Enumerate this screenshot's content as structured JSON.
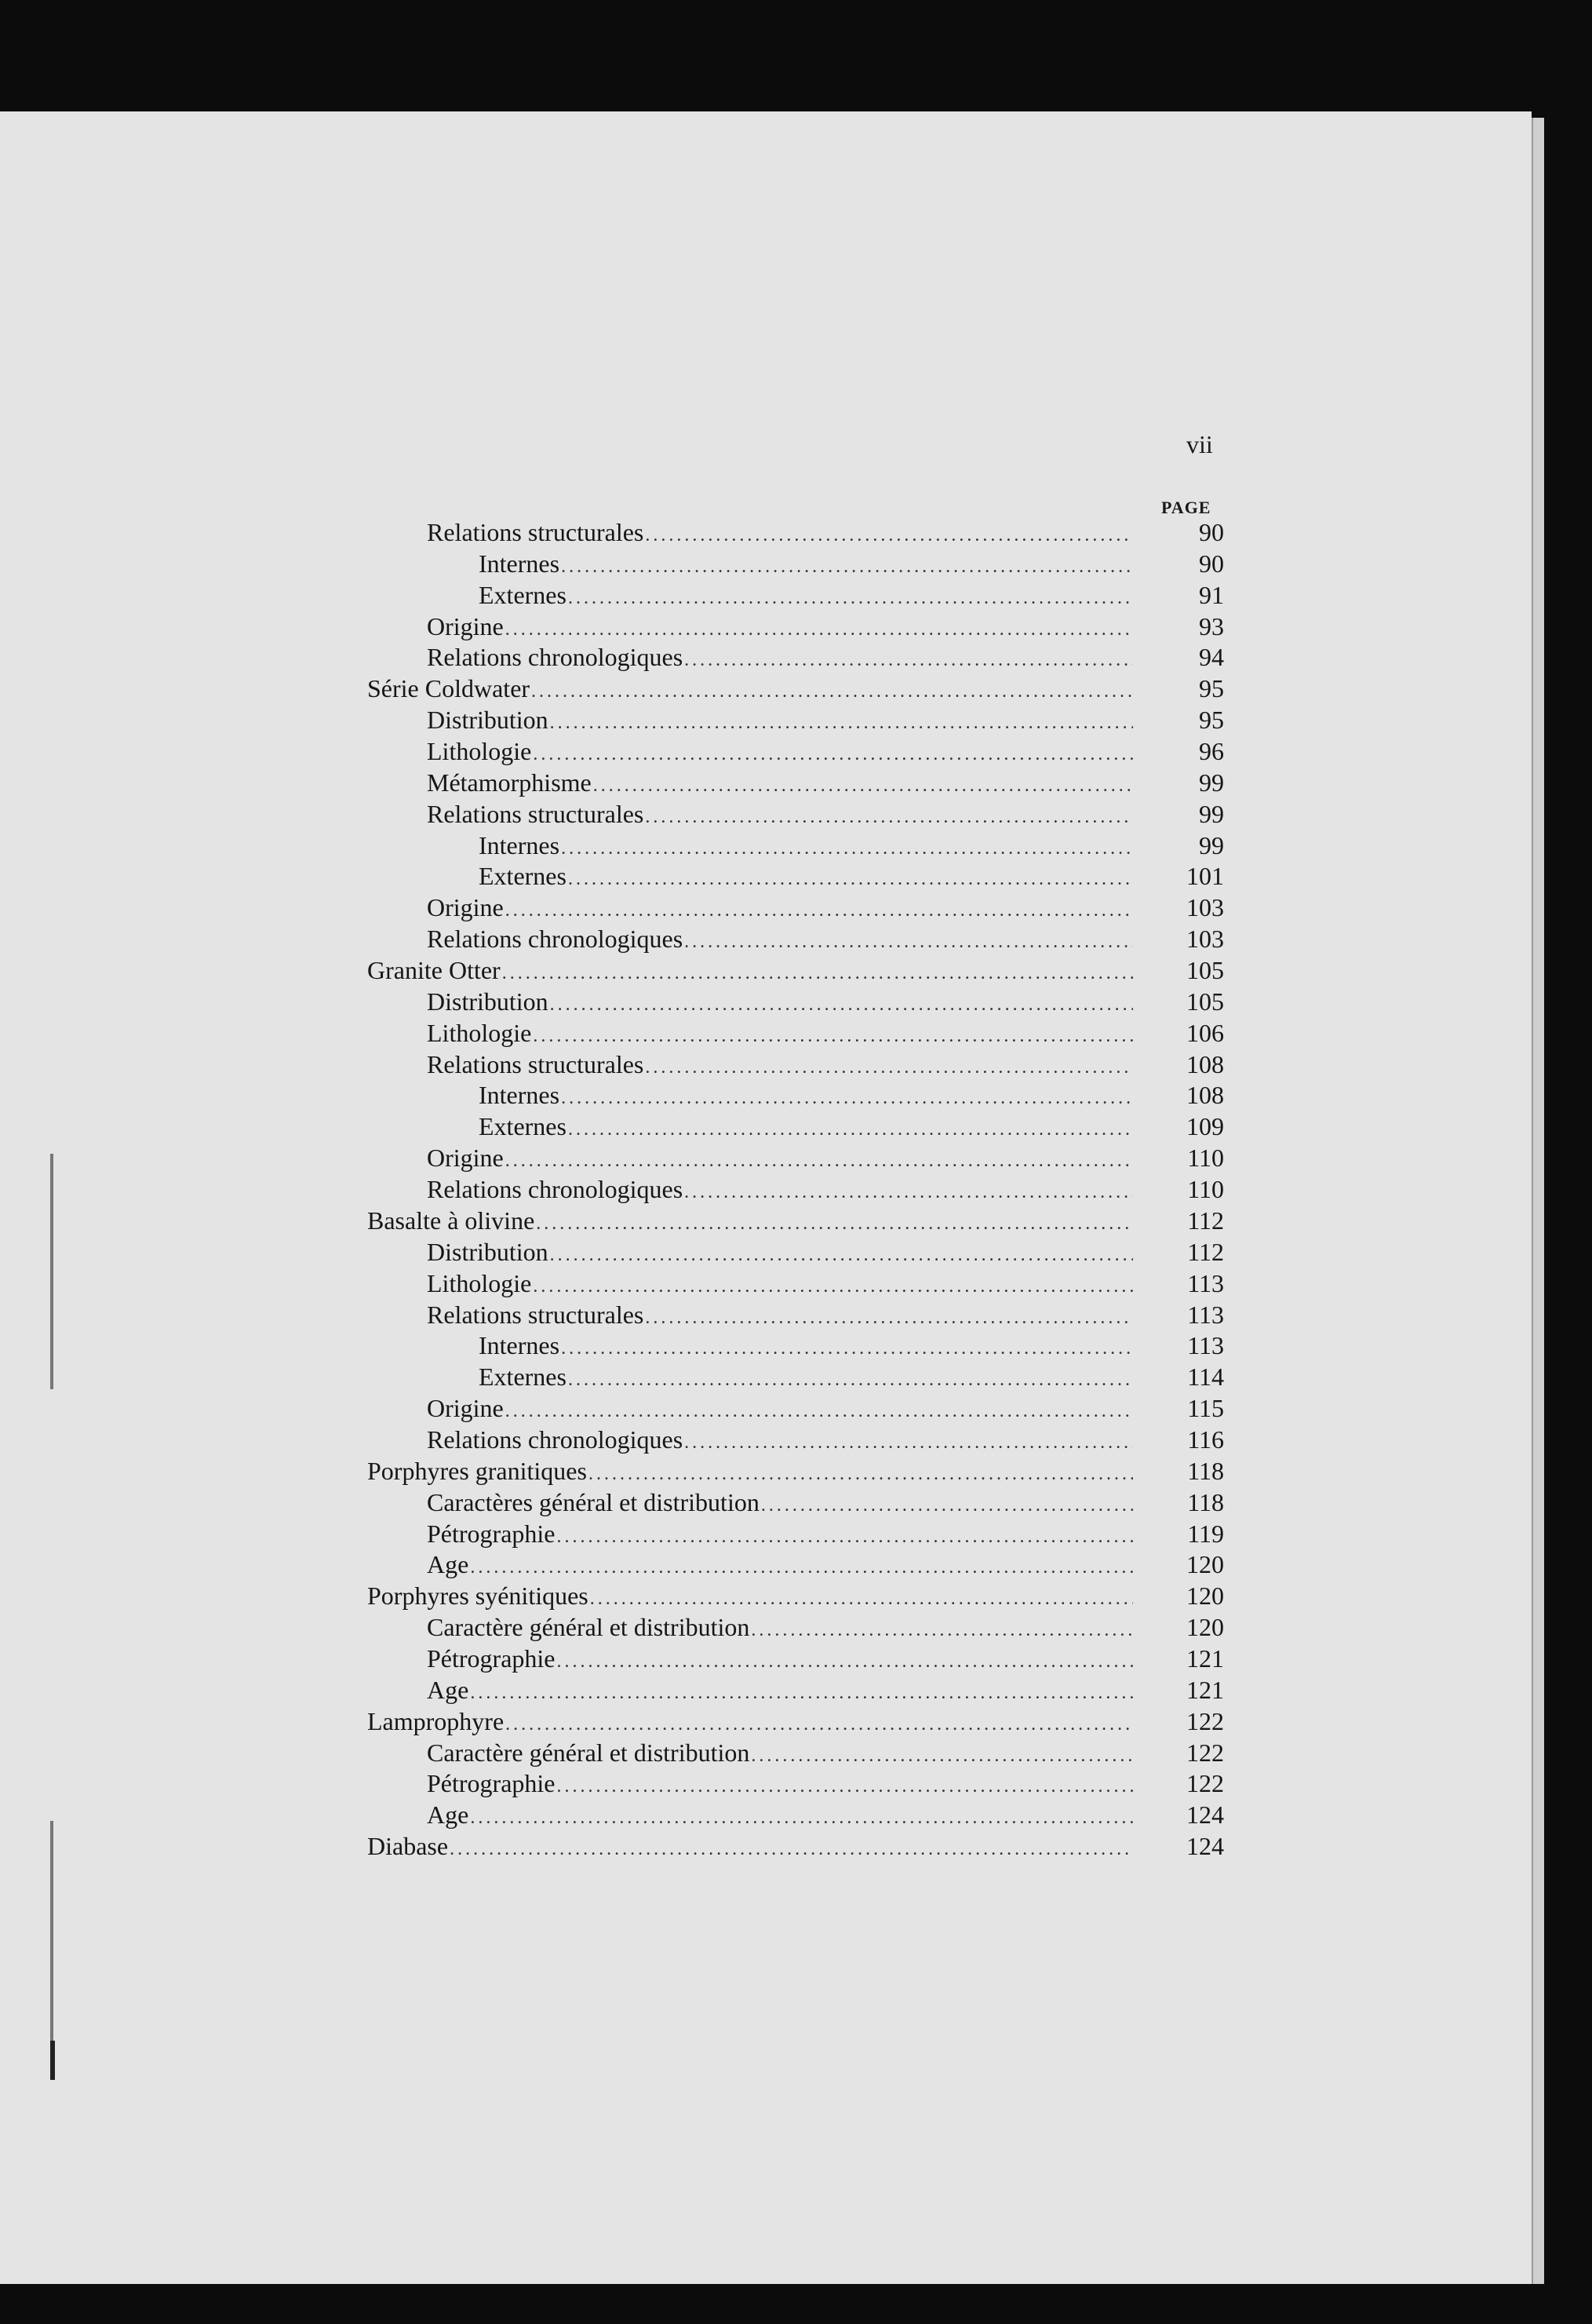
{
  "folio": "vii",
  "column_header": "PAGE",
  "entries": [
    {
      "label": "Relations structurales",
      "page": "90",
      "level": 1
    },
    {
      "label": "Internes",
      "page": "90",
      "level": 2
    },
    {
      "label": "Externes",
      "page": "91",
      "level": 2
    },
    {
      "label": "Origine",
      "page": "93",
      "level": 1
    },
    {
      "label": "Relations chronologiques",
      "page": "94",
      "level": 1
    },
    {
      "label": "Série Coldwater",
      "page": "95",
      "level": 0
    },
    {
      "label": "Distribution",
      "page": "95",
      "level": 1
    },
    {
      "label": "Lithologie",
      "page": "96",
      "level": 1
    },
    {
      "label": "Métamorphisme",
      "page": "99",
      "level": 1
    },
    {
      "label": "Relations structurales",
      "page": "99",
      "level": 1
    },
    {
      "label": "Internes",
      "page": "99",
      "level": 2
    },
    {
      "label": "Externes",
      "page": "101",
      "level": 2
    },
    {
      "label": "Origine",
      "page": "103",
      "level": 1
    },
    {
      "label": "Relations chronologiques",
      "page": "103",
      "level": 1
    },
    {
      "label": "Granite Otter",
      "page": "105",
      "level": 0
    },
    {
      "label": "Distribution",
      "page": "105",
      "level": 1
    },
    {
      "label": "Lithologie",
      "page": "106",
      "level": 1
    },
    {
      "label": "Relations structurales",
      "page": "108",
      "level": 1
    },
    {
      "label": "Internes",
      "page": "108",
      "level": 2
    },
    {
      "label": "Externes",
      "page": "109",
      "level": 2
    },
    {
      "label": "Origine",
      "page": "110",
      "level": 1
    },
    {
      "label": "Relations chronologiques",
      "page": "110",
      "level": 1
    },
    {
      "label": "Basalte à olivine",
      "page": "112",
      "level": 0
    },
    {
      "label": "Distribution",
      "page": "112",
      "level": 1
    },
    {
      "label": "Lithologie",
      "page": "113",
      "level": 1
    },
    {
      "label": "Relations structurales",
      "page": "113",
      "level": 1
    },
    {
      "label": "Internes",
      "page": "113",
      "level": 2
    },
    {
      "label": "Externes",
      "page": "114",
      "level": 2
    },
    {
      "label": "Origine",
      "page": "115",
      "level": 1
    },
    {
      "label": "Relations chronologiques",
      "page": "116",
      "level": 1
    },
    {
      "label": "Porphyres granitiques",
      "page": "118",
      "level": 0
    },
    {
      "label": "Caractères général et distribution",
      "page": "118",
      "level": 1
    },
    {
      "label": "Pétrographie",
      "page": "119",
      "level": 1
    },
    {
      "label": "Age",
      "page": "120",
      "level": 1
    },
    {
      "label": "Porphyres syénitiques",
      "page": "120",
      "level": 0
    },
    {
      "label": "Caractère général et distribution",
      "page": "120",
      "level": 1
    },
    {
      "label": "Pétrographie",
      "page": "121",
      "level": 1
    },
    {
      "label": "Age",
      "page": "121",
      "level": 1
    },
    {
      "label": "Lamprophyre",
      "page": "122",
      "level": 0
    },
    {
      "label": "Caractère général et distribution",
      "page": "122",
      "level": 1
    },
    {
      "label": "Pétrographie",
      "page": "122",
      "level": 1
    },
    {
      "label": "Age",
      "page": "124",
      "level": 1
    },
    {
      "label": "Diabase",
      "page": "124",
      "level": 0
    }
  ]
}
